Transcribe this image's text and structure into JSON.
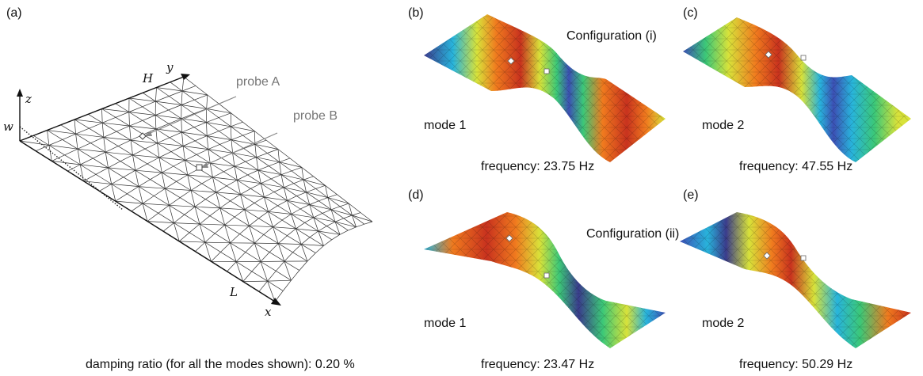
{
  "panels": {
    "a": "(a)",
    "b": "(b)",
    "c": "(c)",
    "d": "(d)",
    "e": "(e)"
  },
  "mesh": {
    "axis_y": "y",
    "axis_z": "z",
    "axis_x": "x",
    "label_H": "H",
    "label_w": "w",
    "label_L": "L",
    "probe_a": "probe A",
    "probe_b": "probe B"
  },
  "configurations": [
    {
      "label": "Configuration (i)",
      "modes": [
        {
          "mode": "mode 1",
          "frequency": "frequency: 23.75 Hz"
        },
        {
          "mode": "mode 2",
          "frequency": "frequency: 47.55 Hz"
        }
      ]
    },
    {
      "label": "Configuration (ii)",
      "modes": [
        {
          "mode": "mode 1",
          "frequency": "frequency: 23.47 Hz"
        },
        {
          "mode": "mode 2",
          "frequency": "frequency: 50.29 Hz"
        }
      ]
    }
  ],
  "damping": "damping ratio (for all the modes shown): 0.20 %",
  "colors": {
    "red": "#c8321e",
    "orange": "#f07a1e",
    "yellow": "#d8e23a",
    "green": "#3cc878",
    "cyan": "#28b4dc",
    "blue": "#3c50b4",
    "navy": "#3a3c8c"
  }
}
